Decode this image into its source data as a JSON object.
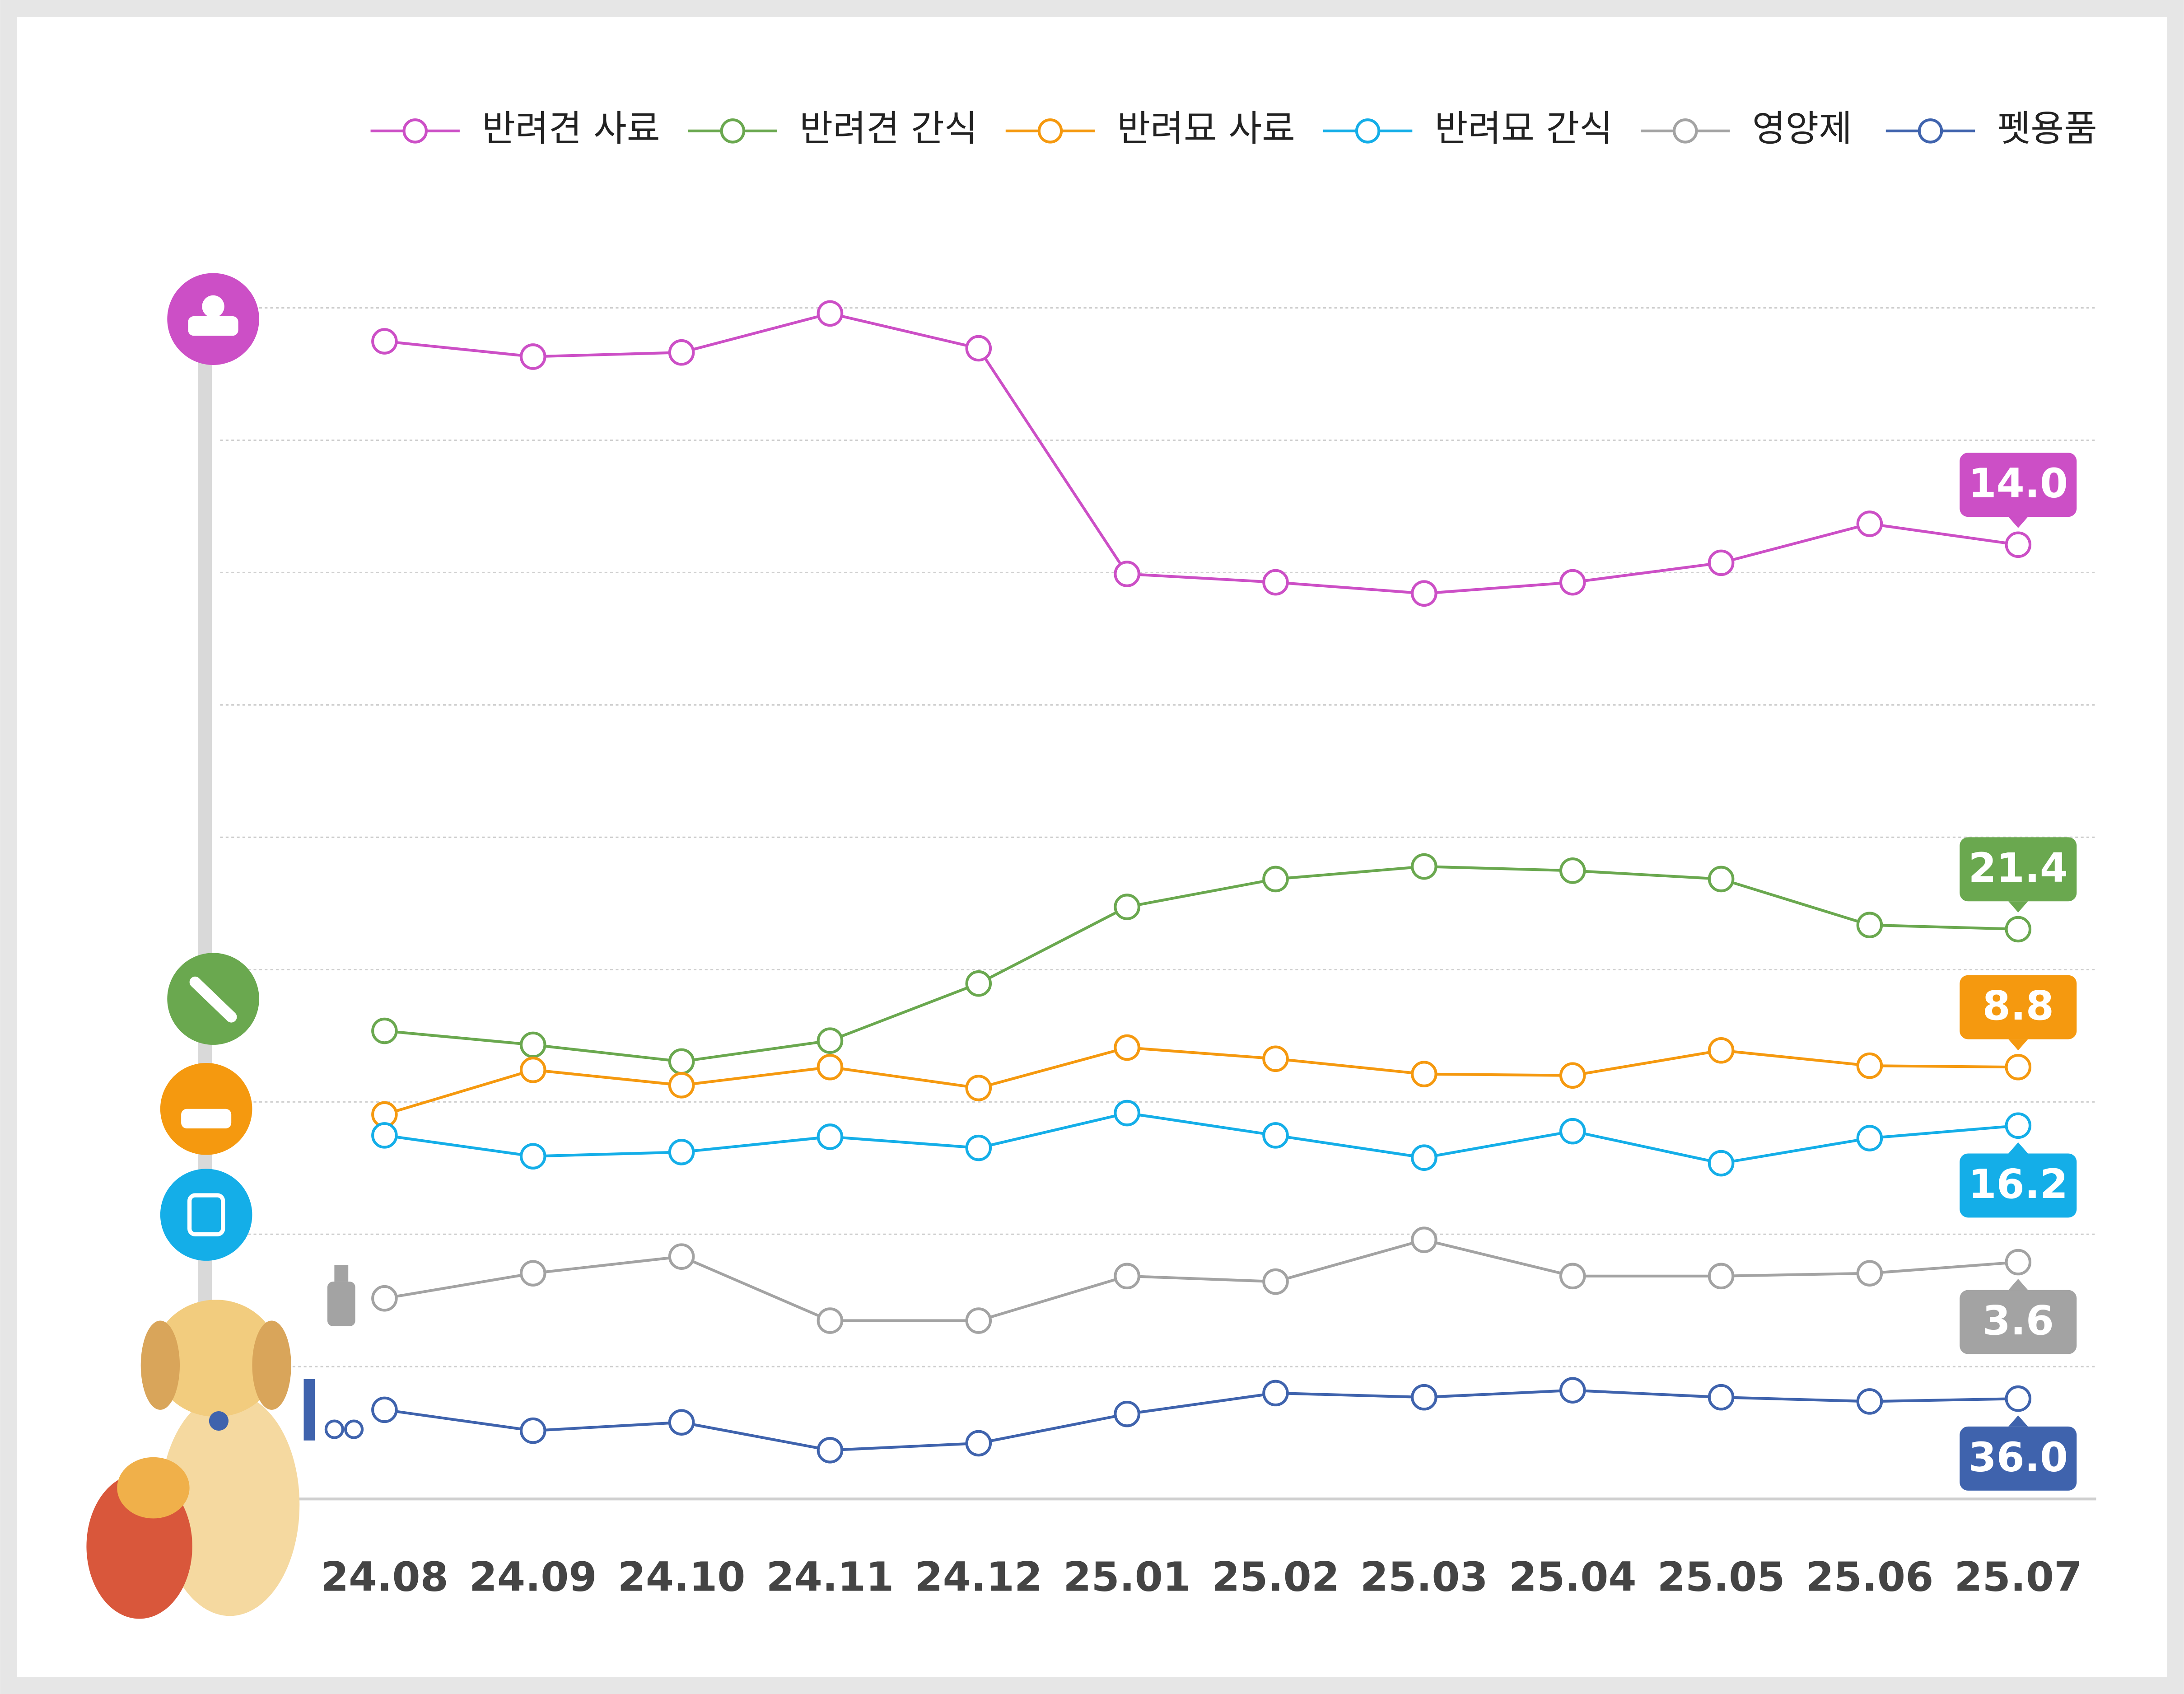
{
  "chart_data": {
    "type": "line",
    "categories": [
      "24.08",
      "24.09",
      "24.10",
      "24.11",
      "24.12",
      "25.01",
      "25.02",
      "25.03",
      "25.04",
      "25.05",
      "25.06",
      "25.07"
    ],
    "series": [
      {
        "name": "반려견 사료",
        "color": "#cc4fc6",
        "ylim": [
          0,
          40
        ],
        "values": [
          28.6,
          27.5,
          27.8,
          30.6,
          28.1,
          11.9,
          11.3,
          10.5,
          11.3,
          12.7,
          15.5,
          14.0
        ],
        "value_labels": [
          null,
          null,
          null,
          null,
          null,
          null,
          null,
          null,
          null,
          null,
          null,
          "14.0"
        ]
      },
      {
        "name": "반려견 간식",
        "color": "#6aa84f",
        "ylim": [
          0,
          40
        ],
        "values": [
          6.8,
          4.8,
          2.4,
          5.4,
          13.6,
          24.6,
          28.6,
          30.4,
          29.8,
          28.6,
          22.0,
          21.4
        ],
        "value_labels": [
          null,
          null,
          null,
          null,
          null,
          null,
          null,
          null,
          null,
          null,
          null,
          "21.4"
        ]
      },
      {
        "name": "반려묘 사료",
        "color": "#f5990f",
        "ylim": [
          0,
          20
        ],
        "values": [
          5.4,
          8.6,
          7.5,
          8.8,
          7.3,
          10.2,
          9.4,
          8.3,
          8.2,
          10.0,
          8.9,
          8.8
        ],
        "value_labels": [
          null,
          null,
          null,
          null,
          null,
          null,
          null,
          null,
          null,
          null,
          null,
          "8.8"
        ]
      },
      {
        "name": "반려묘 간식",
        "color": "#14aee8",
        "ylim": [
          0,
          30
        ],
        "values": [
          15.5,
          14.0,
          14.3,
          15.4,
          14.6,
          17.1,
          15.5,
          13.9,
          15.8,
          13.5,
          15.3,
          16.2
        ],
        "value_labels": [
          null,
          null,
          null,
          null,
          null,
          null,
          null,
          null,
          null,
          null,
          null,
          "16.2"
        ]
      },
      {
        "name": "영양제",
        "color": "#a3a3a3",
        "ylim": [
          0,
          6
        ],
        "values": [
          2.3,
          3.2,
          3.8,
          1.5,
          1.5,
          3.1,
          2.9,
          4.4,
          3.1,
          3.1,
          3.2,
          3.6
        ],
        "value_labels": [
          null,
          null,
          null,
          null,
          null,
          null,
          null,
          null,
          null,
          null,
          null,
          "3.6"
        ]
      },
      {
        "name": "펫용품",
        "color": "#3f63ad",
        "ylim": [
          0,
          60
        ],
        "values": [
          32.0,
          24.5,
          27.5,
          17.5,
          20.0,
          30.5,
          38.0,
          36.5,
          39.0,
          36.5,
          35.0,
          36.0
        ],
        "value_labels": [
          null,
          null,
          null,
          null,
          null,
          null,
          null,
          null,
          null,
          null,
          null,
          "36.0"
        ]
      }
    ]
  }
}
